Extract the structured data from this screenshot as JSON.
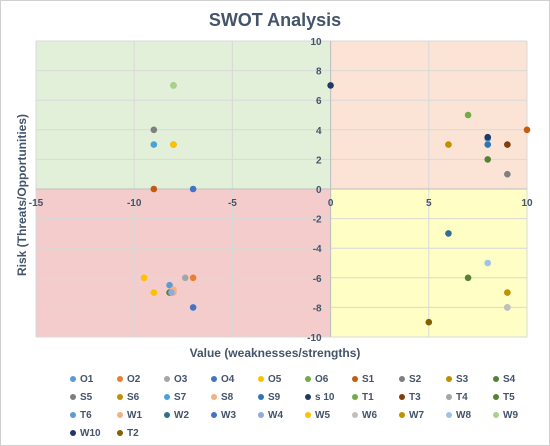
{
  "chart_data": {
    "type": "scatter",
    "title": "SWOT Analysis",
    "xlabel": "Value (weaknesses/strengths)",
    "ylabel": "Risk (Threats/Opportunities)",
    "xlim": [
      -15,
      10
    ],
    "ylim": [
      -10,
      10
    ],
    "xticks": [
      "-15",
      "-10",
      "-5",
      "0",
      "5",
      "10"
    ],
    "yticks": [
      "10",
      "8",
      "6",
      "4",
      "2",
      "0",
      "-2",
      "-4",
      "-6",
      "-8",
      "-10"
    ],
    "grid": true,
    "legend": "bottom",
    "quadrant_colors": {
      "top_left": "#e2efd9",
      "top_right": "#fbe4d5",
      "bottom_left": "#f4cccc",
      "bottom_right": "#fffec4"
    },
    "series": [
      {
        "name": "O1",
        "color": "#5b9bd5",
        "x": -8.2,
        "y": -6.5
      },
      {
        "name": "O2",
        "color": "#ed7d31",
        "x": -7.0,
        "y": -6.0
      },
      {
        "name": "O3",
        "color": "#a5a5a5",
        "x": -7.4,
        "y": -6.0
      },
      {
        "name": "O4",
        "color": "#4472c4",
        "x": -7.0,
        "y": -8.0
      },
      {
        "name": "O5",
        "color": "#ffc000",
        "x": -9.5,
        "y": -6.0
      },
      {
        "name": "O6",
        "color": "#70ad47",
        "x": -8.0,
        "y": 7.0
      },
      {
        "name": "S1",
        "color": "#c55a11",
        "x": -9.0,
        "y": 0.0
      },
      {
        "name": "S2",
        "color": "#7f7f7f",
        "x": -9.0,
        "y": 4.0
      },
      {
        "name": "S3",
        "color": "#bf8f00",
        "x": -8.0,
        "y": 3.0
      },
      {
        "name": "S4",
        "color": "#548235",
        "x": -8.2,
        "y": -7.0
      },
      {
        "name": "S5",
        "color": "#7f7f7f",
        "x": 9.0,
        "y": 1.0
      },
      {
        "name": "S6",
        "color": "#c09000",
        "x": 6.0,
        "y": 3.0
      },
      {
        "name": "S7",
        "color": "#4aa3d8",
        "x": -9.0,
        "y": 3.0
      },
      {
        "name": "S8",
        "color": "#f4b183",
        "x": -8.0,
        "y": -7.0
      },
      {
        "name": "S9",
        "color": "#2e75b6",
        "x": 8.0,
        "y": 3.0
      },
      {
        "name": "s 10",
        "color": "#203864",
        "x": 0.0,
        "y": 7.0
      },
      {
        "name": "T1",
        "color": "#70ad47",
        "x": 7.0,
        "y": 5.0
      },
      {
        "name": "T3",
        "color": "#843c0c",
        "x": 9.0,
        "y": 3.0
      },
      {
        "name": "T4",
        "color": "#a5a5a5",
        "x": 9.0,
        "y": -8.0
      },
      {
        "name": "T5",
        "color": "#548235",
        "x": 7.0,
        "y": -6.0
      },
      {
        "name": "T6",
        "color": "#5b9bd5",
        "x": 8.0,
        "y": 3.4
      },
      {
        "name": "W1",
        "color": "#f4b183",
        "x": -8.0,
        "y": -6.8
      },
      {
        "name": "W2",
        "color": "#2f6f8f",
        "x": 6.0,
        "y": -3.0
      },
      {
        "name": "W3",
        "color": "#4472c4",
        "x": -7.0,
        "y": 0.0
      },
      {
        "name": "W4",
        "color": "#8faadc",
        "x": -8.1,
        "y": -7.0
      },
      {
        "name": "W5",
        "color": "#ffc000",
        "x": -8.0,
        "y": 3.0
      },
      {
        "name": "W6",
        "color": "#bfbfbf",
        "x": 9.0,
        "y": -8.0
      },
      {
        "name": "W7",
        "color": "#bf9000",
        "x": 9.0,
        "y": -7.0
      },
      {
        "name": "W8",
        "color": "#9dc3e6",
        "x": 8.0,
        "y": -5.0
      },
      {
        "name": "W9",
        "color": "#a9d18e",
        "x": -8.0,
        "y": 7.0
      },
      {
        "name": "W10",
        "color": "#1f3864",
        "x": 8.0,
        "y": 3.5
      },
      {
        "name": "T2",
        "color": "#806000",
        "x": 5.0,
        "y": -9.0
      },
      {
        "name": "",
        "color": "#c55a11",
        "x": 10.0,
        "y": 4.0
      },
      {
        "name": "",
        "color": "#548235",
        "x": 8.0,
        "y": 2.0
      },
      {
        "name": "",
        "color": "#ffc000",
        "x": -9.0,
        "y": -7.0
      }
    ]
  }
}
